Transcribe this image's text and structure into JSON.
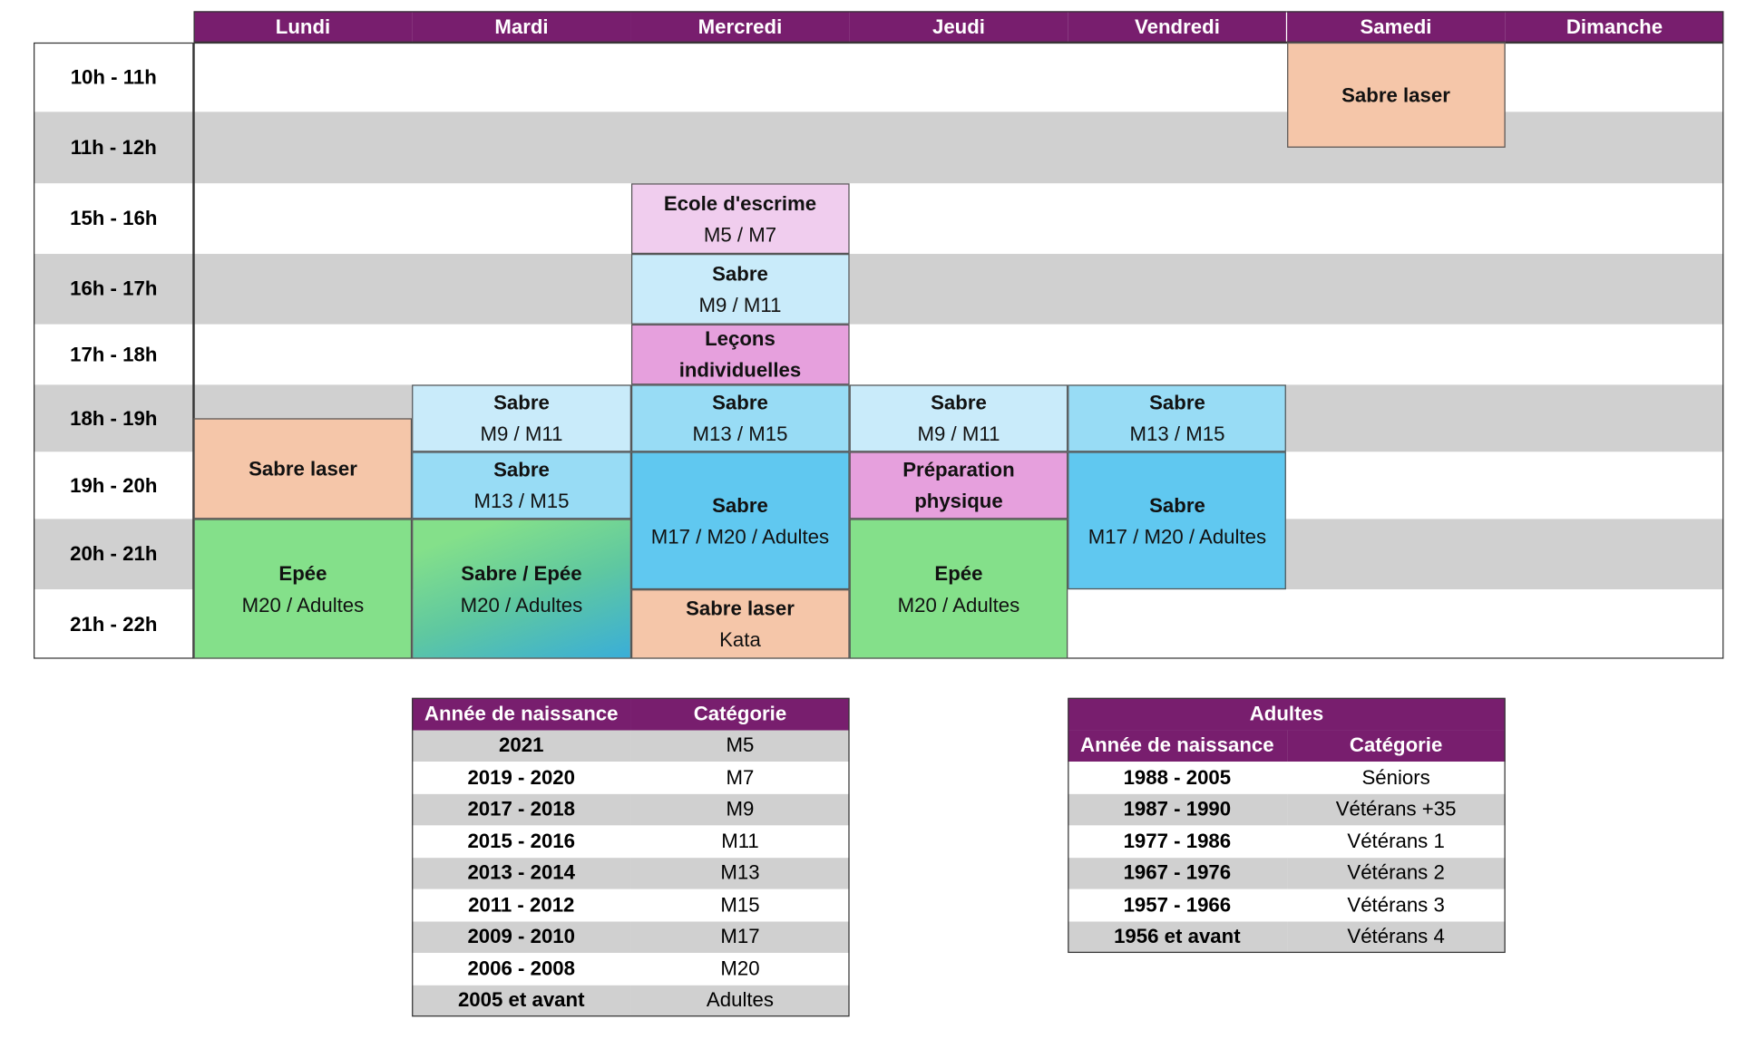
{
  "schedule": {
    "days": [
      "Lundi",
      "Mardi",
      "Mercredi",
      "Jeudi",
      "Vendredi",
      "Samedi",
      "Dimanche"
    ],
    "times": [
      "10h - 11h",
      "11h - 12h",
      "15h - 16h",
      "16h - 17h",
      "17h - 18h",
      "18h - 19h",
      "19h - 20h",
      "20h - 21h",
      "21h - 22h"
    ],
    "events": [
      {
        "title": "Sabre laser"
      },
      {
        "title": "Ecole d'escrime",
        "subtitle": "M5 / M7"
      },
      {
        "title": "Sabre",
        "subtitle": "M9 / M11"
      },
      {
        "title": "Leçons individuelles"
      },
      {
        "title": "Sabre",
        "subtitle": "M9 / M11"
      },
      {
        "title": "Sabre",
        "subtitle": "M13 / M15"
      },
      {
        "title": "Sabre",
        "subtitle": "M9 / M11"
      },
      {
        "title": "Sabre",
        "subtitle": "M13 / M15"
      },
      {
        "title": "Sabre laser"
      },
      {
        "title": "Sabre",
        "subtitle": "M13 / M15"
      },
      {
        "title": "Sabre",
        "subtitle": "M17 / M20 / Adultes"
      },
      {
        "title": "Préparation physique"
      },
      {
        "title": "Sabre",
        "subtitle": "M17 / M20 / Adultes"
      },
      {
        "title": "Epée",
        "subtitle": "M20 / Adultes"
      },
      {
        "title": "Sabre / Epée",
        "subtitle": "M20 / Adultes"
      },
      {
        "title": "Sabre laser",
        "subtitle": "Kata"
      },
      {
        "title": "Epée",
        "subtitle": "M20 / Adultes"
      }
    ]
  },
  "youth_table": {
    "columns": [
      "Année de naissance",
      "Catégorie"
    ],
    "rows": [
      [
        "2021",
        "M5"
      ],
      [
        "2019 - 2020",
        "M7"
      ],
      [
        "2017 - 2018",
        "M9"
      ],
      [
        "2015 - 2016",
        "M11"
      ],
      [
        "2013 - 2014",
        "M13"
      ],
      [
        "2011 - 2012",
        "M15"
      ],
      [
        "2009 - 2010",
        "M17"
      ],
      [
        "2006 - 2008",
        "M20"
      ],
      [
        "2005 et avant",
        "Adultes"
      ]
    ]
  },
  "adult_table": {
    "title": "Adultes",
    "columns": [
      "Année de naissance",
      "Catégorie"
    ],
    "rows": [
      [
        "1988 - 2005",
        "Séniors"
      ],
      [
        "1987 - 1990",
        "Vétérans +35"
      ],
      [
        "1977 - 1986",
        "Vétérans 1"
      ],
      [
        "1967 - 1976",
        "Vétérans 2"
      ],
      [
        "1957 - 1966",
        "Vétérans 3"
      ],
      [
        "1956 et avant",
        "Vétérans 4"
      ]
    ]
  }
}
